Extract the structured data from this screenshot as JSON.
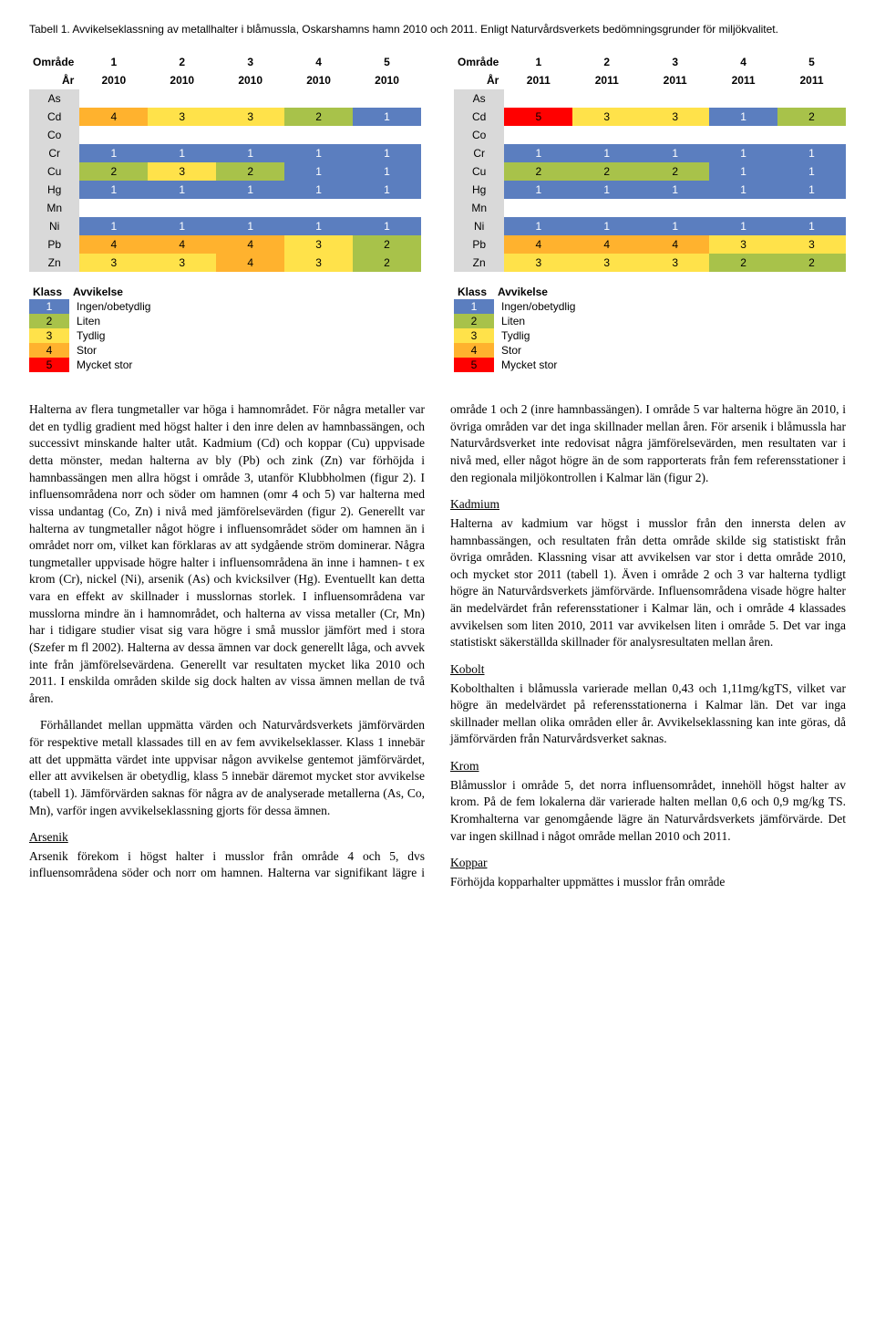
{
  "caption": "Tabell 1. Avvikelseklassning av metallhalter i blåmussla, Oskarshamns hamn 2010 och 2011. Enligt Naturvårdsverkets bedömningsgrunder för miljökvalitet.",
  "colors": {
    "grey": "#d9d9d9",
    "white": "#ffffff",
    "k1": "#5b7ebf",
    "k2": "#a8c24a",
    "k3": "#ffe24a",
    "k4": "#ffb22e",
    "k5": "#ff0000",
    "k1_text": "#ffffff",
    "dark_text": "#000000"
  },
  "left_table": {
    "axis1": "Område",
    "axis2": "År",
    "areas": [
      "1",
      "2",
      "3",
      "4",
      "5"
    ],
    "years": [
      "2010",
      "2010",
      "2010",
      "2010",
      "2010"
    ],
    "rows": [
      {
        "label": "As",
        "cells": [
          {
            "v": "",
            "k": 0
          },
          {
            "v": "",
            "k": 0
          },
          {
            "v": "",
            "k": 0
          },
          {
            "v": "",
            "k": 0
          },
          {
            "v": "",
            "k": 0
          }
        ]
      },
      {
        "label": "Cd",
        "cells": [
          {
            "v": "4",
            "k": 4
          },
          {
            "v": "3",
            "k": 3
          },
          {
            "v": "3",
            "k": 3
          },
          {
            "v": "2",
            "k": 2
          },
          {
            "v": "1",
            "k": 1
          }
        ]
      },
      {
        "label": "Co",
        "cells": [
          {
            "v": "",
            "k": 0
          },
          {
            "v": "",
            "k": 0
          },
          {
            "v": "",
            "k": 0
          },
          {
            "v": "",
            "k": 0
          },
          {
            "v": "",
            "k": 0
          }
        ]
      },
      {
        "label": "Cr",
        "cells": [
          {
            "v": "1",
            "k": 1
          },
          {
            "v": "1",
            "k": 1
          },
          {
            "v": "1",
            "k": 1
          },
          {
            "v": "1",
            "k": 1
          },
          {
            "v": "1",
            "k": 1
          }
        ]
      },
      {
        "label": "Cu",
        "cells": [
          {
            "v": "2",
            "k": 2
          },
          {
            "v": "3",
            "k": 3
          },
          {
            "v": "2",
            "k": 2
          },
          {
            "v": "1",
            "k": 1
          },
          {
            "v": "1",
            "k": 1
          }
        ]
      },
      {
        "label": "Hg",
        "cells": [
          {
            "v": "1",
            "k": 1
          },
          {
            "v": "1",
            "k": 1
          },
          {
            "v": "1",
            "k": 1
          },
          {
            "v": "1",
            "k": 1
          },
          {
            "v": "1",
            "k": 1
          }
        ]
      },
      {
        "label": "Mn",
        "cells": [
          {
            "v": "",
            "k": 0
          },
          {
            "v": "",
            "k": 0
          },
          {
            "v": "",
            "k": 0
          },
          {
            "v": "",
            "k": 0
          },
          {
            "v": "",
            "k": 0
          }
        ]
      },
      {
        "label": "Ni",
        "cells": [
          {
            "v": "1",
            "k": 1
          },
          {
            "v": "1",
            "k": 1
          },
          {
            "v": "1",
            "k": 1
          },
          {
            "v": "1",
            "k": 1
          },
          {
            "v": "1",
            "k": 1
          }
        ]
      },
      {
        "label": "Pb",
        "cells": [
          {
            "v": "4",
            "k": 4
          },
          {
            "v": "4",
            "k": 4
          },
          {
            "v": "4",
            "k": 4
          },
          {
            "v": "3",
            "k": 3
          },
          {
            "v": "2",
            "k": 2
          }
        ]
      },
      {
        "label": "Zn",
        "cells": [
          {
            "v": "3",
            "k": 3
          },
          {
            "v": "3",
            "k": 3
          },
          {
            "v": "4",
            "k": 4
          },
          {
            "v": "3",
            "k": 3
          },
          {
            "v": "2",
            "k": 2
          }
        ]
      }
    ]
  },
  "right_table": {
    "axis1": "Område",
    "axis2": "År",
    "areas": [
      "1",
      "2",
      "3",
      "4",
      "5"
    ],
    "years": [
      "2011",
      "2011",
      "2011",
      "2011",
      "2011"
    ],
    "rows": [
      {
        "label": "As",
        "cells": [
          {
            "v": "",
            "k": 0
          },
          {
            "v": "",
            "k": 0
          },
          {
            "v": "",
            "k": 0
          },
          {
            "v": "",
            "k": 0
          },
          {
            "v": "",
            "k": 0
          }
        ]
      },
      {
        "label": "Cd",
        "cells": [
          {
            "v": "5",
            "k": 5
          },
          {
            "v": "3",
            "k": 3
          },
          {
            "v": "3",
            "k": 3
          },
          {
            "v": "1",
            "k": 1
          },
          {
            "v": "2",
            "k": 2
          }
        ]
      },
      {
        "label": "Co",
        "cells": [
          {
            "v": "",
            "k": 0
          },
          {
            "v": "",
            "k": 0
          },
          {
            "v": "",
            "k": 0
          },
          {
            "v": "",
            "k": 0
          },
          {
            "v": "",
            "k": 0
          }
        ]
      },
      {
        "label": "Cr",
        "cells": [
          {
            "v": "1",
            "k": 1
          },
          {
            "v": "1",
            "k": 1
          },
          {
            "v": "1",
            "k": 1
          },
          {
            "v": "1",
            "k": 1
          },
          {
            "v": "1",
            "k": 1
          }
        ]
      },
      {
        "label": "Cu",
        "cells": [
          {
            "v": "2",
            "k": 2
          },
          {
            "v": "2",
            "k": 2
          },
          {
            "v": "2",
            "k": 2
          },
          {
            "v": "1",
            "k": 1
          },
          {
            "v": "1",
            "k": 1
          }
        ]
      },
      {
        "label": "Hg",
        "cells": [
          {
            "v": "1",
            "k": 1
          },
          {
            "v": "1",
            "k": 1
          },
          {
            "v": "1",
            "k": 1
          },
          {
            "v": "1",
            "k": 1
          },
          {
            "v": "1",
            "k": 1
          }
        ]
      },
      {
        "label": "Mn",
        "cells": [
          {
            "v": "",
            "k": 0
          },
          {
            "v": "",
            "k": 0
          },
          {
            "v": "",
            "k": 0
          },
          {
            "v": "",
            "k": 0
          },
          {
            "v": "",
            "k": 0
          }
        ]
      },
      {
        "label": "Ni",
        "cells": [
          {
            "v": "1",
            "k": 1
          },
          {
            "v": "1",
            "k": 1
          },
          {
            "v": "1",
            "k": 1
          },
          {
            "v": "1",
            "k": 1
          },
          {
            "v": "1",
            "k": 1
          }
        ]
      },
      {
        "label": "Pb",
        "cells": [
          {
            "v": "4",
            "k": 4
          },
          {
            "v": "4",
            "k": 4
          },
          {
            "v": "4",
            "k": 4
          },
          {
            "v": "3",
            "k": 3
          },
          {
            "v": "3",
            "k": 3
          }
        ]
      },
      {
        "label": "Zn",
        "cells": [
          {
            "v": "3",
            "k": 3
          },
          {
            "v": "3",
            "k": 3
          },
          {
            "v": "3",
            "k": 3
          },
          {
            "v": "2",
            "k": 2
          },
          {
            "v": "2",
            "k": 2
          }
        ]
      }
    ]
  },
  "legend": {
    "head_klass": "Klass",
    "head_avv": "Avvikelse",
    "rows": [
      {
        "k": 1,
        "label": "Ingen/obetydlig"
      },
      {
        "k": 2,
        "label": "Liten"
      },
      {
        "k": 3,
        "label": "Tydlig"
      },
      {
        "k": 4,
        "label": "Stor"
      },
      {
        "k": 5,
        "label": "Mycket stor"
      }
    ]
  },
  "body": {
    "p1": "Halterna av flera tungmetaller var höga i hamnområdet. För några metaller var det en tydlig gradient med högst halter i den inre delen av hamnbassängen, och successivt minskande halter utåt. Kadmium (Cd) och koppar (Cu) uppvisade detta mönster, medan halterna av bly (Pb) och zink (Zn) var förhöjda i hamnbassängen men allra högst i område 3, utanför Klubbholmen (figur 2). I influensområdena norr och söder om hamnen (omr 4 och 5) var halterna med vissa undantag (Co, Zn) i nivå med jämförelsevärden (figur 2). Generellt var halterna av tungmetaller något högre i influensområdet söder om hamnen än i området norr om, vilket kan förklaras av att sydgående ström dominerar. Några tungmetaller uppvisade högre halter i influensområdena än inne i hamnen- t ex krom (Cr), nickel (Ni), arsenik (As) och kvicksilver (Hg). Eventuellt kan detta vara en effekt av skillnader i musslornas storlek. I influensområdena var musslorna mindre än i hamnområdet, och halterna av vissa metaller (Cr, Mn) har i tidigare studier visat sig vara högre i små musslor jämfört med i stora (Szefer m fl 2002). Halterna av dessa ämnen var dock generellt låga, och avvek inte från jämförelsevärdena. Generellt var resultaten mycket lika 2010 och 2011. I enskilda områden skilde sig dock halten av vissa ämnen mellan de två åren.",
    "p2": "Förhållandet mellan uppmätta värden och Naturvårdsverkets jämförvärden för respektive metall klassades till en av fem avvikelseklasser. Klass 1 innebär att det uppmätta värdet inte uppvisar någon avvikelse gentemot jämförvärdet, eller att avvikelsen är obetydlig, klass 5 innebär däremot mycket stor avvikelse (tabell 1). Jämförvärden saknas för några av de analyserade metallerna (As, Co, Mn), varför ingen avvikelseklassning gjorts för dessa ämnen.",
    "h_arsenik": "Arsenik",
    "p_arsenik": "Arsenik förekom i högst halter i musslor från område 4 och 5, dvs influensområdena söder och norr om hamnen. Halterna var signifikant lägre i område 1 och 2 (inre hamnbassängen). I område 5 var halterna högre än 2010, i övriga områden var det inga skillnader mellan åren. För arsenik i blåmussla har Naturvårdsverket inte redovisat några jämförelsevärden, men resultaten var i nivå med, eller något högre än de som rapporterats från fem referensstationer i den regionala miljökontrollen i Kalmar län (figur 2).",
    "h_kadmium": "Kadmium",
    "p_kadmium": "Halterna av kadmium var högst i musslor från den innersta delen av hamnbassängen, och resultaten från detta område skilde sig statistiskt från övriga områden. Klassning visar att avvikelsen var stor i detta område 2010, och mycket stor 2011 (tabell 1). Även i område 2 och 3 var halterna tydligt högre än Naturvårdsverkets jämförvärde. Influensområdena visade högre halter än medelvärdet från referensstationer i Kalmar län, och i område 4 klassades avvikelsen som liten 2010, 2011 var avvikelsen liten i område 5. Det var inga statistiskt säkerställda skillnader för analysresultaten mellan åren.",
    "h_kobolt": "Kobolt",
    "p_kobolt": "Kobolthalten i blåmussla varierade mellan 0,43 och 1,11mg/kgTS, vilket var högre än medelvärdet på referensstationerna i Kalmar län. Det var inga skillnader mellan olika områden eller år. Avvikelseklassning kan inte göras, då jämförvärden från Naturvårdsverket saknas.",
    "h_krom": "Krom",
    "p_krom": "Blåmusslor i område 5, det norra influensområdet, innehöll högst halter av krom. På de fem lokalerna där varierade halten mellan 0,6 och 0,9 mg/kg TS. Kromhalterna var genomgående lägre än Naturvårdsverkets jämförvärde. Det var ingen skillnad i något område mellan 2010 och 2011.",
    "h_koppar": "Koppar",
    "p_koppar": "Förhöjda kopparhalter uppmättes i musslor från område"
  }
}
